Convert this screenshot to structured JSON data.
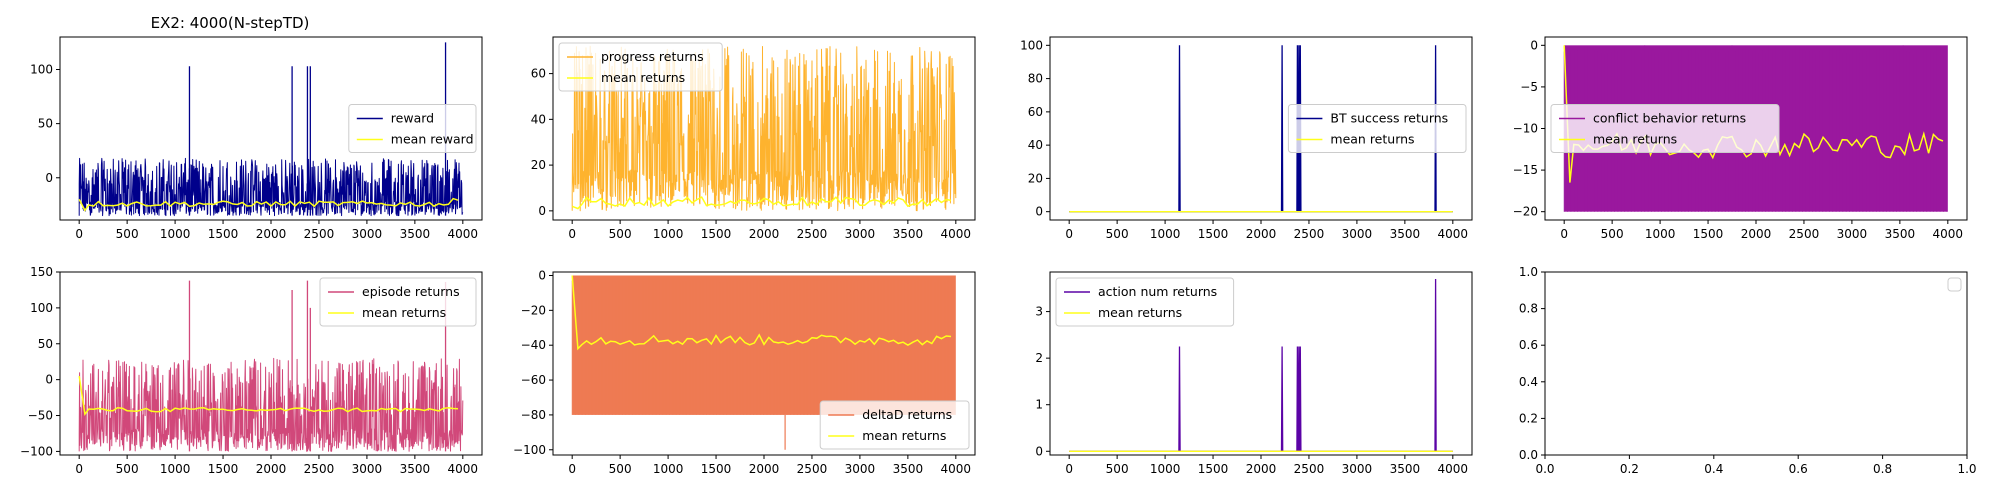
{
  "figure_title": "EX2: 4000(N-stepTD)",
  "colors": {
    "mean": "#ffff1a",
    "navy": "#00008b",
    "orange": "#feb32e",
    "purple": "#9a189e",
    "pink": "#d1487a",
    "coral": "#ee7a53",
    "violet": "#5b03a6"
  },
  "chart_data": [
    {
      "type": "line",
      "panel": "reward",
      "xlim": [
        -200,
        4200
      ],
      "ylim": [
        -39,
        130
      ],
      "xticks": [
        0,
        500,
        1000,
        1500,
        2000,
        2500,
        3000,
        3500,
        4000
      ],
      "yticks": [
        0,
        50,
        100
      ],
      "legend": "center-right",
      "series": [
        {
          "name": "reward",
          "color": "#00008b",
          "kind": "noise",
          "min": -35,
          "max": 18,
          "spikes": [
            [
              1150,
              103
            ],
            [
              2220,
              103
            ],
            [
              2380,
              103
            ],
            [
              2410,
              103
            ],
            [
              3820,
              125
            ]
          ]
        },
        {
          "name": "mean reward",
          "color": "#ffff1a",
          "kind": "mean",
          "start": -20,
          "base": -24,
          "dip": -30,
          "amp": 2.5,
          "end": -20
        }
      ]
    },
    {
      "type": "line",
      "panel": "progress",
      "xlim": [
        -200,
        4200
      ],
      "ylim": [
        -4,
        76
      ],
      "xticks": [
        0,
        500,
        1000,
        1500,
        2000,
        2500,
        3000,
        3500,
        4000
      ],
      "yticks": [
        0,
        20,
        40,
        60
      ],
      "legend": "top-left",
      "series": [
        {
          "name": "progress returns",
          "color": "#feb32e",
          "kind": "noise",
          "min": 0,
          "max": 72,
          "spikes": []
        },
        {
          "name": "mean returns",
          "color": "#ffff1a",
          "kind": "mean",
          "start": 2,
          "base": 4,
          "dip": 1,
          "amp": 2,
          "end": 5
        }
      ]
    },
    {
      "type": "line",
      "panel": "bt",
      "xlim": [
        -200,
        4200
      ],
      "ylim": [
        -5,
        105
      ],
      "xticks": [
        0,
        500,
        1000,
        1500,
        2000,
        2500,
        3000,
        3500,
        4000
      ],
      "yticks": [
        0,
        20,
        40,
        60,
        80,
        100
      ],
      "legend": "center-right",
      "series": [
        {
          "name": "BT success returns",
          "color": "#00008b",
          "kind": "flat",
          "value": 0,
          "spikes": [
            [
              1150,
              100
            ],
            [
              2220,
              100
            ],
            [
              2380,
              100
            ],
            [
              2395,
              100
            ],
            [
              2410,
              100
            ],
            [
              3820,
              100
            ]
          ]
        },
        {
          "name": "mean returns",
          "color": "#ffff1a",
          "kind": "flat",
          "value": 0,
          "spikes": []
        }
      ]
    },
    {
      "type": "line",
      "panel": "conflict",
      "xlim": [
        -200,
        4200
      ],
      "ylim": [
        -21,
        1
      ],
      "xticks": [
        0,
        500,
        1000,
        1500,
        2000,
        2500,
        3000,
        3500,
        4000
      ],
      "yticks": [
        -20,
        -15,
        -10,
        -5,
        0
      ],
      "legend": "center-left",
      "series": [
        {
          "name": "conflict behavior returns",
          "color": "#9a189e",
          "kind": "band",
          "min": -20,
          "max": 0
        },
        {
          "name": "mean returns",
          "color": "#ffff1a",
          "kind": "mean",
          "start": 0,
          "base": -12,
          "dip": -16.5,
          "amp": 1.5,
          "end": -11.6
        }
      ]
    },
    {
      "type": "line",
      "panel": "episode",
      "xlim": [
        -200,
        4200
      ],
      "ylim": [
        -105,
        150
      ],
      "xticks": [
        0,
        500,
        1000,
        1500,
        2000,
        2500,
        3000,
        3500,
        4000
      ],
      "yticks": [
        -100,
        -50,
        0,
        50,
        100,
        150
      ],
      "legend": "top-right",
      "series": [
        {
          "name": "episode returns",
          "color": "#d1487a",
          "kind": "noise",
          "min": -100,
          "max": 30,
          "spikes": [
            [
              1150,
              138
            ],
            [
              2220,
              125
            ],
            [
              2380,
              138
            ],
            [
              2410,
              100
            ],
            [
              3820,
              136
            ]
          ]
        },
        {
          "name": "mean returns",
          "color": "#ffff1a",
          "kind": "mean",
          "start": 5,
          "base": -42,
          "dip": -48,
          "amp": 3,
          "end": -40
        }
      ]
    },
    {
      "type": "line",
      "panel": "deltaD",
      "xlim": [
        -200,
        4200
      ],
      "ylim": [
        -103,
        2
      ],
      "xticks": [
        0,
        500,
        1000,
        1500,
        2000,
        2500,
        3000,
        3500,
        4000
      ],
      "yticks": [
        -100,
        -80,
        -60,
        -40,
        -20,
        0
      ],
      "legend": "bottom-right",
      "series": [
        {
          "name": "deltaD returns",
          "color": "#ee7a53",
          "kind": "band",
          "min": -80,
          "max": 0,
          "spikes": [
            [
              2220,
              -100
            ]
          ]
        },
        {
          "name": "mean returns",
          "color": "#ffff1a",
          "kind": "mean",
          "start": 0,
          "base": -37,
          "dip": -42,
          "amp": 3,
          "end": -35
        }
      ]
    },
    {
      "type": "line",
      "panel": "action",
      "xlim": [
        -200,
        4200
      ],
      "ylim": [
        -0.08,
        3.85
      ],
      "xticks": [
        0,
        500,
        1000,
        1500,
        2000,
        2500,
        3000,
        3500,
        4000
      ],
      "yticks": [
        0,
        1,
        2,
        3
      ],
      "legend": "top-left",
      "series": [
        {
          "name": "action num returns",
          "color": "#5b03a6",
          "kind": "flat",
          "value": 0,
          "spikes": [
            [
              1150,
              2.25
            ],
            [
              2220,
              2.25
            ],
            [
              2380,
              2.25
            ],
            [
              2395,
              2.25
            ],
            [
              2410,
              2.25
            ],
            [
              3820,
              3.7
            ]
          ]
        },
        {
          "name": "mean returns",
          "color": "#ffff1a",
          "kind": "flat",
          "value": 0,
          "spikes": []
        }
      ]
    },
    {
      "type": "line",
      "panel": "empty",
      "xlim": [
        0,
        1
      ],
      "ylim": [
        0,
        1
      ],
      "xticks": [
        0.0,
        0.2,
        0.4,
        0.6,
        0.8,
        1.0
      ],
      "yticks": [
        0.0,
        0.2,
        0.4,
        0.6,
        0.8,
        1.0
      ],
      "legend": "top-right",
      "series": []
    }
  ]
}
